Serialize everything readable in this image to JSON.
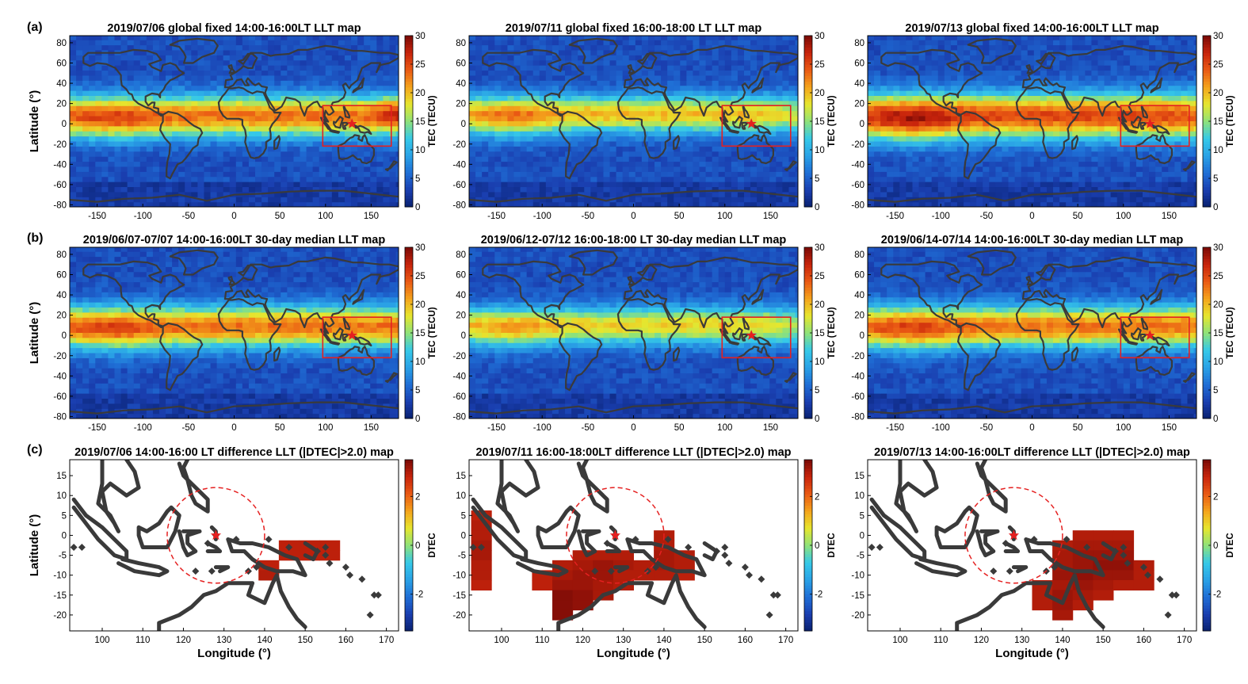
{
  "panel_letters": [
    "(a)",
    "(b)",
    "(c)"
  ],
  "colors": {
    "colormap": [
      "#08206e",
      "#1a3fb0",
      "#1f6fd6",
      "#2aa2e6",
      "#36c9e8",
      "#8ee27a",
      "#e6e62e",
      "#f4a41c",
      "#ea5a14",
      "#c8240c",
      "#7a0a06"
    ],
    "land_outline": "#3a3a3a",
    "box": "#e52020",
    "star": "#e52020",
    "circle": "#e52020"
  },
  "chart_data": [
    {
      "type": "heatmap",
      "id": "a1",
      "row": 0,
      "col": 0,
      "title": "2019/07/06  global fixed 14:00-16:00LT LLT map",
      "ylabel": "Latitude (°)",
      "xlabel": "",
      "colorbar_label": "TEC (TECU)",
      "xlim": [
        -180,
        180
      ],
      "ylim": [
        -82,
        87
      ],
      "clim": [
        0,
        30
      ],
      "xticks": [
        -150,
        -100,
        -50,
        0,
        50,
        100,
        150
      ],
      "yticks": [
        -80,
        -60,
        -40,
        -20,
        0,
        20,
        40,
        60,
        80
      ],
      "cticks": [
        0,
        5,
        10,
        15,
        20,
        25,
        30
      ],
      "field": {
        "peak": 23,
        "lat0": 8,
        "width": 20,
        "west_boost": 3,
        "east_boost": 4
      },
      "marker": {
        "type": "star",
        "lon": 129,
        "lat": 0
      },
      "box": {
        "lon": [
          97,
          172
        ],
        "lat": [
          -22,
          18
        ]
      }
    },
    {
      "type": "heatmap",
      "id": "a2",
      "row": 0,
      "col": 1,
      "title": "2019/07/11 global fixed 16:00-18:00 LT LLT map",
      "ylabel": "",
      "xlabel": "",
      "colorbar_label": "TEC (TECU)",
      "xlim": [
        -180,
        180
      ],
      "ylim": [
        -82,
        87
      ],
      "clim": [
        0,
        30
      ],
      "xticks": [
        -150,
        -100,
        -50,
        0,
        50,
        100,
        150
      ],
      "yticks": [
        -80,
        -60,
        -40,
        -20,
        0,
        20,
        40,
        60,
        80
      ],
      "cticks": [
        0,
        5,
        10,
        15,
        20,
        25,
        30
      ],
      "field": {
        "peak": 20,
        "lat0": 10,
        "width": 18,
        "west_boost": 4,
        "east_boost": -3
      },
      "marker": {
        "type": "star",
        "lon": 129,
        "lat": 0
      },
      "box": {
        "lon": [
          97,
          172
        ],
        "lat": [
          -22,
          18
        ]
      }
    },
    {
      "type": "heatmap",
      "id": "a3",
      "row": 0,
      "col": 2,
      "title": "2019/07/13 global fixed 14:00-16:00LT LLT map",
      "ylabel": "",
      "xlabel": "",
      "colorbar_label": "TEC (TECU)",
      "xlim": [
        -180,
        180
      ],
      "ylim": [
        -82,
        87
      ],
      "clim": [
        0,
        30
      ],
      "xticks": [
        -150,
        -100,
        -50,
        0,
        50,
        100,
        150
      ],
      "yticks": [
        -80,
        -60,
        -40,
        -20,
        0,
        20,
        40,
        60,
        80
      ],
      "cticks": [
        0,
        5,
        10,
        15,
        20,
        25,
        30
      ],
      "field": {
        "peak": 25,
        "lat0": 8,
        "width": 22,
        "west_boost": 4,
        "east_boost": -1
      },
      "marker": {
        "type": "star",
        "lon": 129,
        "lat": 0
      },
      "box": {
        "lon": [
          97,
          172
        ],
        "lat": [
          -22,
          18
        ]
      }
    },
    {
      "type": "heatmap",
      "id": "b1",
      "row": 1,
      "col": 0,
      "title": "2019/06/07-07/07 14:00-16:00LT 30-day median LLT map",
      "ylabel": "Latitude (°)",
      "xlabel": "",
      "colorbar_label": "TEC (TECU)",
      "xlim": [
        -180,
        180
      ],
      "ylim": [
        -82,
        87
      ],
      "clim": [
        0,
        30
      ],
      "xticks": [
        -150,
        -100,
        -50,
        0,
        50,
        100,
        150
      ],
      "yticks": [
        -80,
        -60,
        -40,
        -20,
        0,
        20,
        40,
        60,
        80
      ],
      "cticks": [
        0,
        5,
        10,
        15,
        20,
        25,
        30
      ],
      "field": {
        "peak": 23,
        "lat0": 9,
        "width": 20,
        "west_boost": 3,
        "east_boost": 0
      },
      "marker": {
        "type": "star",
        "lon": 129,
        "lat": 0
      },
      "box": {
        "lon": [
          97,
          172
        ],
        "lat": [
          -22,
          18
        ]
      }
    },
    {
      "type": "heatmap",
      "id": "b2",
      "row": 1,
      "col": 1,
      "title": "2019/06/12-07/12 16:00-18:00 LT 30-day median LLT map",
      "ylabel": "",
      "xlabel": "",
      "colorbar_label": "TEC (TECU)",
      "xlim": [
        -180,
        180
      ],
      "ylim": [
        -82,
        87
      ],
      "clim": [
        0,
        30
      ],
      "xticks": [
        -150,
        -100,
        -50,
        0,
        50,
        100,
        150
      ],
      "yticks": [
        -80,
        -60,
        -40,
        -20,
        0,
        20,
        40,
        60,
        80
      ],
      "cticks": [
        0,
        5,
        10,
        15,
        20,
        25,
        30
      ],
      "field": {
        "peak": 19,
        "lat0": 10,
        "width": 18,
        "west_boost": 3,
        "east_boost": -3
      },
      "marker": {
        "type": "star",
        "lon": 129,
        "lat": 0
      },
      "box": {
        "lon": [
          97,
          172
        ],
        "lat": [
          -22,
          18
        ]
      }
    },
    {
      "type": "heatmap",
      "id": "b3",
      "row": 1,
      "col": 2,
      "title": "2019/06/14-07/14 14:00-16:00LT 30-day median LLT map",
      "ylabel": "",
      "xlabel": "",
      "colorbar_label": "TEC (TECU)",
      "xlim": [
        -180,
        180
      ],
      "ylim": [
        -82,
        87
      ],
      "clim": [
        0,
        30
      ],
      "xticks": [
        -150,
        -100,
        -50,
        0,
        50,
        100,
        150
      ],
      "yticks": [
        -80,
        -60,
        -40,
        -20,
        0,
        20,
        40,
        60,
        80
      ],
      "cticks": [
        0,
        5,
        10,
        15,
        20,
        25,
        30
      ],
      "field": {
        "peak": 23,
        "lat0": 9,
        "width": 20,
        "west_boost": 3,
        "east_boost": 0
      },
      "marker": {
        "type": "star",
        "lon": 129,
        "lat": 0
      },
      "box": {
        "lon": [
          97,
          172
        ],
        "lat": [
          -22,
          18
        ]
      }
    },
    {
      "type": "heatmap",
      "id": "c1",
      "row": 2,
      "col": 0,
      "title": "2019/07/06 14:00-16:00 LT difference LLT (|DTEC|>2.0) map",
      "ylabel": "Latitude (°)",
      "xlabel": "Longitude (°)",
      "colorbar_label": "DTEC",
      "xlim": [
        92,
        173
      ],
      "ylim": [
        -24,
        19
      ],
      "clim": [
        -3.5,
        3.5
      ],
      "xticks": [
        100,
        110,
        120,
        130,
        140,
        150,
        160,
        170
      ],
      "yticks": [
        -20,
        -15,
        -10,
        -5,
        0,
        5,
        10,
        15
      ],
      "cticks": [
        -2,
        0,
        2
      ],
      "marker": {
        "type": "star",
        "lon": 128,
        "lat": 0
      },
      "circle": {
        "lon": 128,
        "lat": 0,
        "radius": 12
      },
      "cells": [
        {
          "lon": 146,
          "lat": -2.5,
          "value": 2.9
        },
        {
          "lon": 151,
          "lat": -2.5,
          "value": 2.9
        },
        {
          "lon": 156,
          "lat": -2.5,
          "value": 2.9
        },
        {
          "lon": 146,
          "lat": -5,
          "value": 2.9
        },
        {
          "lon": 151,
          "lat": -5,
          "value": 2.9
        },
        {
          "lon": 156,
          "lat": -5,
          "value": 2.9
        },
        {
          "lon": 141,
          "lat": -7.5,
          "value": 2.9
        },
        {
          "lon": 141,
          "lat": -10,
          "value": 3.0
        }
      ]
    },
    {
      "type": "heatmap",
      "id": "c2",
      "row": 2,
      "col": 1,
      "title": "2019/07/11 16:00-18:00LT difference LLT (|DTEC|>2.0) map",
      "ylabel": "",
      "xlabel": "Longitude (°)",
      "colorbar_label": "DTEC",
      "xlim": [
        92,
        173
      ],
      "ylim": [
        -24,
        19
      ],
      "clim": [
        -3.5,
        3.5
      ],
      "xticks": [
        100,
        110,
        120,
        130,
        140,
        150,
        160,
        170
      ],
      "yticks": [
        -20,
        -15,
        -10,
        -5,
        0,
        5,
        10,
        15
      ],
      "cticks": [
        -2,
        0,
        2
      ],
      "marker": {
        "type": "star",
        "lon": 128,
        "lat": 0
      },
      "circle": {
        "lon": 128,
        "lat": 0,
        "radius": 12
      },
      "cells": [
        {
          "lon": 95,
          "lat": 5,
          "value": 2.9
        },
        {
          "lon": 95,
          "lat": 2.5,
          "value": 3.0
        },
        {
          "lon": 95,
          "lat": 0,
          "value": 3.0
        },
        {
          "lon": 95,
          "lat": -2.5,
          "value": 3.1
        },
        {
          "lon": 95,
          "lat": -5,
          "value": 3.1
        },
        {
          "lon": 95,
          "lat": -7.5,
          "value": 3.0
        },
        {
          "lon": 95,
          "lat": -10,
          "value": 3.0
        },
        {
          "lon": 95,
          "lat": -12.5,
          "value": 2.9
        },
        {
          "lon": 110,
          "lat": -10,
          "value": 2.9
        },
        {
          "lon": 110,
          "lat": -12.5,
          "value": 2.9
        },
        {
          "lon": 115,
          "lat": -7.5,
          "value": 3.0
        },
        {
          "lon": 115,
          "lat": -10,
          "value": 3.1
        },
        {
          "lon": 115,
          "lat": -12.5,
          "value": 3.2
        },
        {
          "lon": 115,
          "lat": -15,
          "value": 3.4
        },
        {
          "lon": 115,
          "lat": -17.5,
          "value": 3.4
        },
        {
          "lon": 115,
          "lat": -20,
          "value": 3.4
        },
        {
          "lon": 120,
          "lat": -5,
          "value": 3.0
        },
        {
          "lon": 120,
          "lat": -7.5,
          "value": 3.1
        },
        {
          "lon": 120,
          "lat": -10,
          "value": 3.2
        },
        {
          "lon": 120,
          "lat": -12.5,
          "value": 3.2
        },
        {
          "lon": 120,
          "lat": -15,
          "value": 3.3
        },
        {
          "lon": 120,
          "lat": -17.5,
          "value": 3.3
        },
        {
          "lon": 125,
          "lat": -5,
          "value": 3.0
        },
        {
          "lon": 125,
          "lat": -7.5,
          "value": 3.2
        },
        {
          "lon": 125,
          "lat": -10,
          "value": 3.2
        },
        {
          "lon": 125,
          "lat": -12.5,
          "value": 3.1
        },
        {
          "lon": 125,
          "lat": -15,
          "value": 3.1
        },
        {
          "lon": 130,
          "lat": -5,
          "value": 3.0
        },
        {
          "lon": 130,
          "lat": -7.5,
          "value": 3.1
        },
        {
          "lon": 130,
          "lat": -10,
          "value": 3.0
        },
        {
          "lon": 130,
          "lat": -12.5,
          "value": 3.0
        },
        {
          "lon": 135,
          "lat": -7.5,
          "value": 3.0
        },
        {
          "lon": 135,
          "lat": -10,
          "value": 3.0
        },
        {
          "lon": 140,
          "lat": 0,
          "value": 3.0
        },
        {
          "lon": 140,
          "lat": -2.5,
          "value": 3.0
        },
        {
          "lon": 140,
          "lat": -5,
          "value": 3.1
        },
        {
          "lon": 140,
          "lat": -7.5,
          "value": 3.1
        },
        {
          "lon": 140,
          "lat": -10,
          "value": 3.0
        },
        {
          "lon": 145,
          "lat": -5,
          "value": 3.0
        },
        {
          "lon": 145,
          "lat": -7.5,
          "value": 3.0
        },
        {
          "lon": 145,
          "lat": -10,
          "value": 2.9
        }
      ]
    },
    {
      "type": "heatmap",
      "id": "c3",
      "row": 2,
      "col": 2,
      "title": "2019/07/13 14:00-16:00LT difference LLT (|DTEC|>2.0) map",
      "ylabel": "",
      "xlabel": "Longitude (°)",
      "colorbar_label": "DTEC",
      "xlim": [
        92,
        173
      ],
      "ylim": [
        -24,
        19
      ],
      "clim": [
        -3.5,
        3.5
      ],
      "xticks": [
        100,
        110,
        120,
        130,
        140,
        150,
        160,
        170
      ],
      "yticks": [
        -20,
        -15,
        -10,
        -5,
        0,
        5,
        10,
        15
      ],
      "cticks": [
        -2,
        0,
        2
      ],
      "marker": {
        "type": "star",
        "lon": 128,
        "lat": 0
      },
      "circle": {
        "lon": 128,
        "lat": 0,
        "radius": 12
      },
      "cells": [
        {
          "lon": 145,
          "lat": 0,
          "value": 3.0
        },
        {
          "lon": 150,
          "lat": 0,
          "value": 3.0
        },
        {
          "lon": 155,
          "lat": 0,
          "value": 3.0
        },
        {
          "lon": 140,
          "lat": -2.5,
          "value": 3.0
        },
        {
          "lon": 145,
          "lat": -2.5,
          "value": 3.1
        },
        {
          "lon": 150,
          "lat": -2.5,
          "value": 3.1
        },
        {
          "lon": 155,
          "lat": -2.5,
          "value": 3.1
        },
        {
          "lon": 140,
          "lat": -5,
          "value": 3.1
        },
        {
          "lon": 145,
          "lat": -5,
          "value": 3.2
        },
        {
          "lon": 150,
          "lat": -5,
          "value": 3.2
        },
        {
          "lon": 155,
          "lat": -5,
          "value": 3.2
        },
        {
          "lon": 140,
          "lat": -7.5,
          "value": 3.1
        },
        {
          "lon": 145,
          "lat": -7.5,
          "value": 3.2
        },
        {
          "lon": 150,
          "lat": -7.5,
          "value": 3.3
        },
        {
          "lon": 155,
          "lat": -7.5,
          "value": 3.3
        },
        {
          "lon": 160,
          "lat": -7.5,
          "value": 3.0
        },
        {
          "lon": 140,
          "lat": -10,
          "value": 3.2
        },
        {
          "lon": 145,
          "lat": -10,
          "value": 3.3
        },
        {
          "lon": 150,
          "lat": -10,
          "value": 3.2
        },
        {
          "lon": 155,
          "lat": -10,
          "value": 3.2
        },
        {
          "lon": 160,
          "lat": -10,
          "value": 3.0
        },
        {
          "lon": 135,
          "lat": -12.5,
          "value": 3.0
        },
        {
          "lon": 140,
          "lat": -12.5,
          "value": 3.1
        },
        {
          "lon": 145,
          "lat": -12.5,
          "value": 3.2
        },
        {
          "lon": 150,
          "lat": -12.5,
          "value": 3.1
        },
        {
          "lon": 155,
          "lat": -12.5,
          "value": 3.0
        },
        {
          "lon": 160,
          "lat": -12.5,
          "value": 3.0
        },
        {
          "lon": 135,
          "lat": -15,
          "value": 3.0
        },
        {
          "lon": 140,
          "lat": -15,
          "value": 3.2
        },
        {
          "lon": 145,
          "lat": -15,
          "value": 3.1
        },
        {
          "lon": 150,
          "lat": -15,
          "value": 3.0
        },
        {
          "lon": 135,
          "lat": -17.5,
          "value": 3.0
        },
        {
          "lon": 140,
          "lat": -17.5,
          "value": 3.2
        },
        {
          "lon": 145,
          "lat": -17.5,
          "value": 3.0
        },
        {
          "lon": 140,
          "lat": -20,
          "value": 3.1
        }
      ]
    }
  ]
}
